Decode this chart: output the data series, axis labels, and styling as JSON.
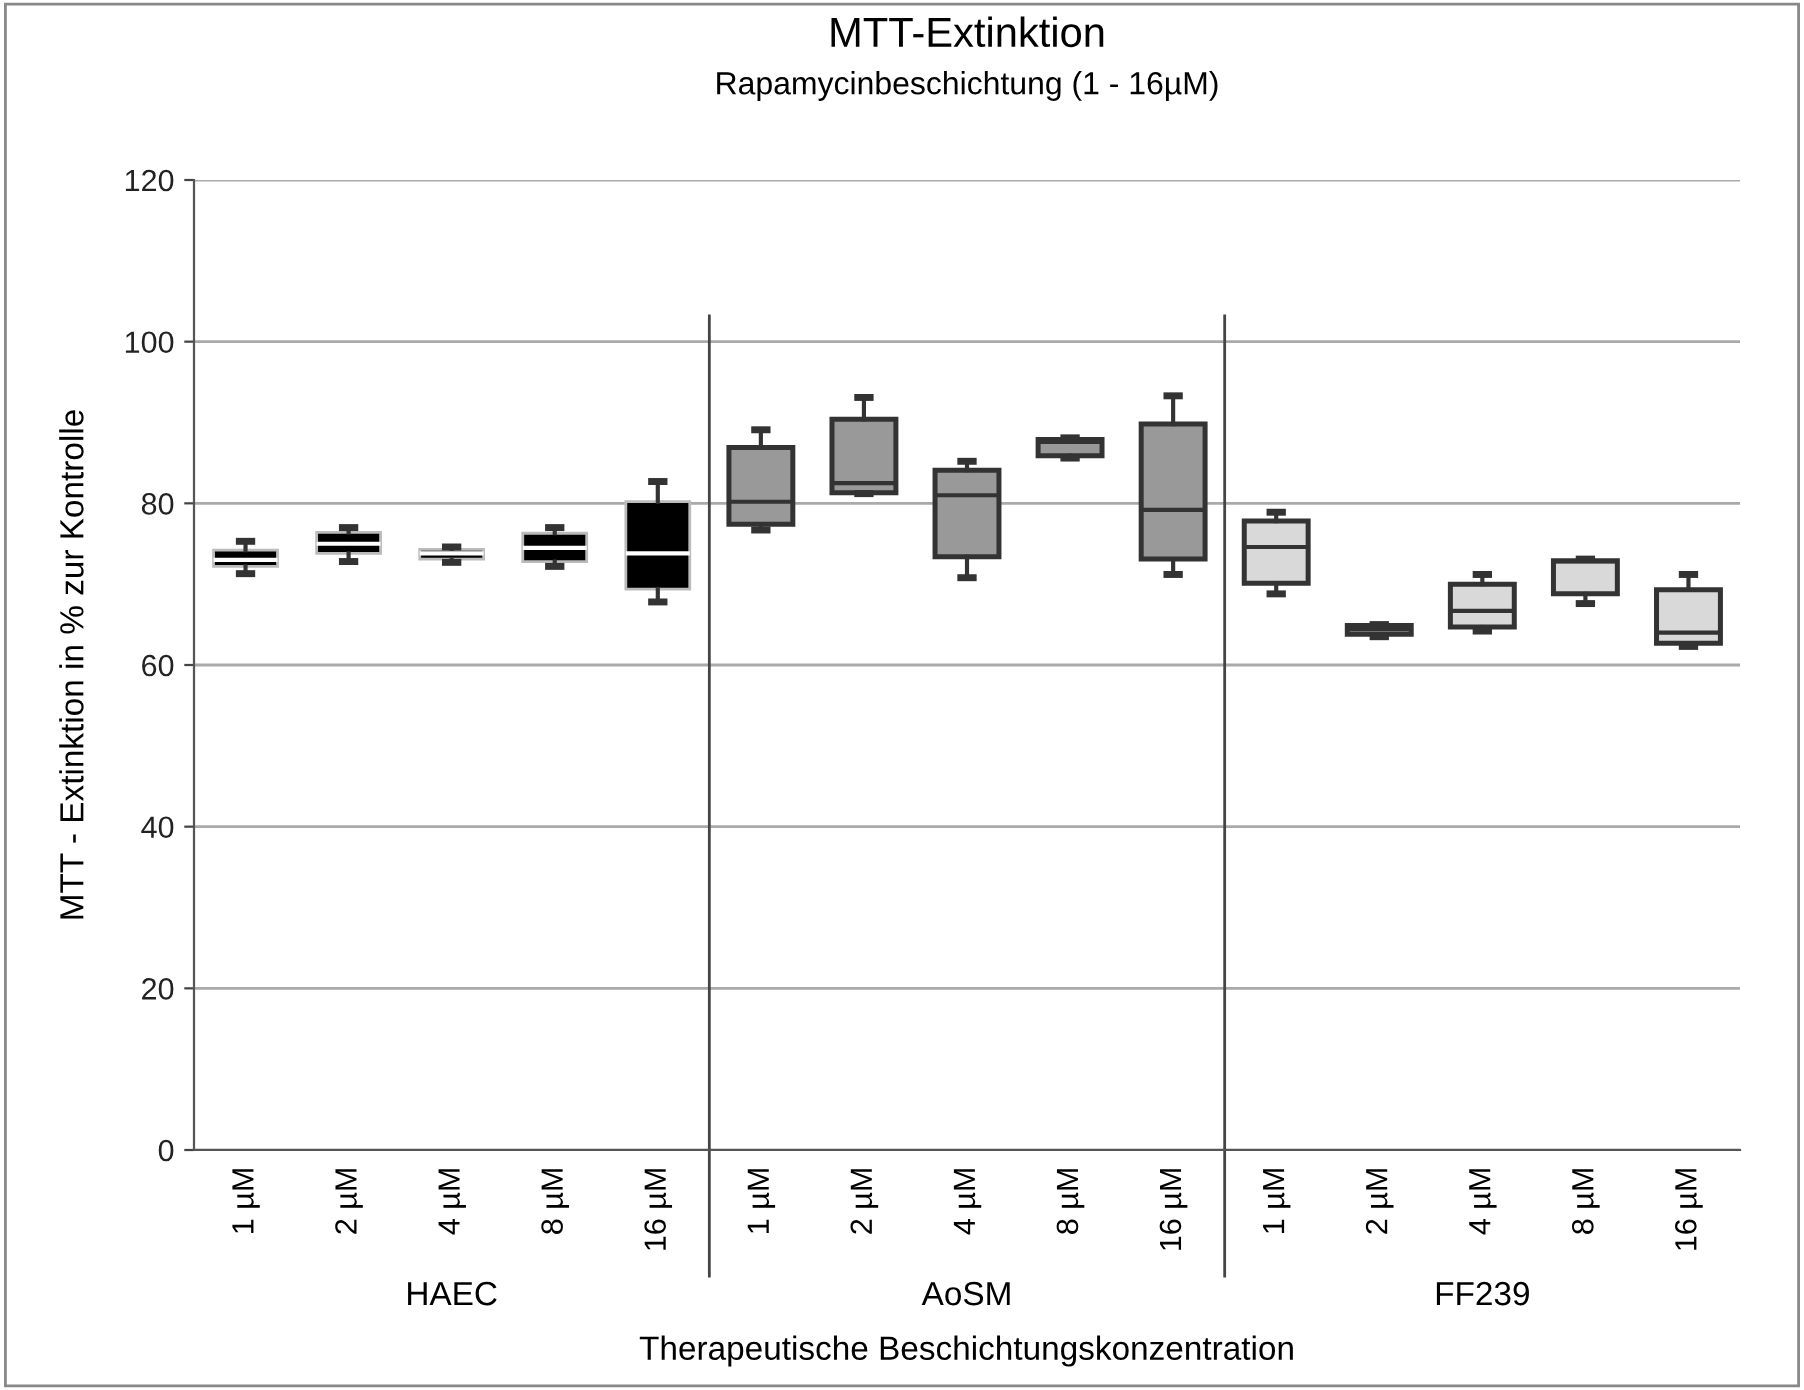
{
  "chart_data": {
    "type": "box",
    "title": "MTT-Extinktion",
    "subtitle": "Rapamycinbeschichtung (1 - 16µM)",
    "xlabel": "Therapeutische Beschichtungskonzentration",
    "ylabel": "MTT - Extinktion in % zur Kontrolle",
    "categories": [
      "1 µM",
      "2 µM",
      "4 µM",
      "8 µM",
      "16 µM",
      "1 µM",
      "2 µM",
      "4 µM",
      "8 µM",
      "16 µM",
      "1 µM",
      "2 µM",
      "4 µM",
      "8 µM",
      "16 µM"
    ],
    "annotations": [
      "HAEC",
      "AoSM",
      "FF239"
    ],
    "ylim": [
      0,
      120
    ],
    "yticks": [
      0,
      20,
      40,
      60,
      80,
      100,
      120
    ],
    "grid": "y",
    "colors": [
      "#000000",
      "#000000",
      "#000000",
      "#000000",
      "#000000",
      "#999999",
      "#999999",
      "#999999",
      "#999999",
      "#999999",
      "#d9d9d9",
      "#d9d9d9",
      "#d9d9d9",
      "#d9d9d9",
      "#d9d9d9"
    ],
    "boxes": [
      {
        "low": 71.3,
        "q1": 72.2,
        "median": 73,
        "q3": 74.2,
        "high": 75.3
      },
      {
        "low": 72.8,
        "q1": 73.8,
        "median": 75,
        "q3": 76.4,
        "high": 77.0
      },
      {
        "low": 72.7,
        "q1": 73.1,
        "median": 73.8,
        "q3": 74.3,
        "high": 74.6
      },
      {
        "low": 72.2,
        "q1": 72.8,
        "median": 74.5,
        "q3": 76.3,
        "high": 77.0
      },
      {
        "low": 67.8,
        "q1": 69.4,
        "median": 73.8,
        "q3": 80.2,
        "high": 82.7
      },
      {
        "low": 76.7,
        "q1": 77.4,
        "median": 80.2,
        "q3": 86.9,
        "high": 89.1
      },
      {
        "low": 81.2,
        "q1": 81.3,
        "median": 82.5,
        "q3": 90.4,
        "high": 93.1
      },
      {
        "low": 70.8,
        "q1": 73.4,
        "median": 81.0,
        "q3": 84.1,
        "high": 85.2
      },
      {
        "low": 85.6,
        "q1": 85.9,
        "median": 87.6,
        "q3": 87.9,
        "high": 88.1
      },
      {
        "low": 71.2,
        "q1": 73.1,
        "median": 79.2,
        "q3": 89.8,
        "high": 93.3
      },
      {
        "low": 68.8,
        "q1": 70.1,
        "median": 74.6,
        "q3": 77.8,
        "high": 78.9
      },
      {
        "low": 63.5,
        "q1": 63.8,
        "median": 64.4,
        "q3": 64.9,
        "high": 65.0
      },
      {
        "low": 64.2,
        "q1": 64.7,
        "median": 66.7,
        "q3": 70.0,
        "high": 71.2
      },
      {
        "low": 67.6,
        "q1": 68.8,
        "median": 72.8,
        "q3": 72.9,
        "high": 73.1
      },
      {
        "low": 62.3,
        "q1": 62.7,
        "median": 64.0,
        "q3": 69.3,
        "high": 71.2
      }
    ]
  }
}
